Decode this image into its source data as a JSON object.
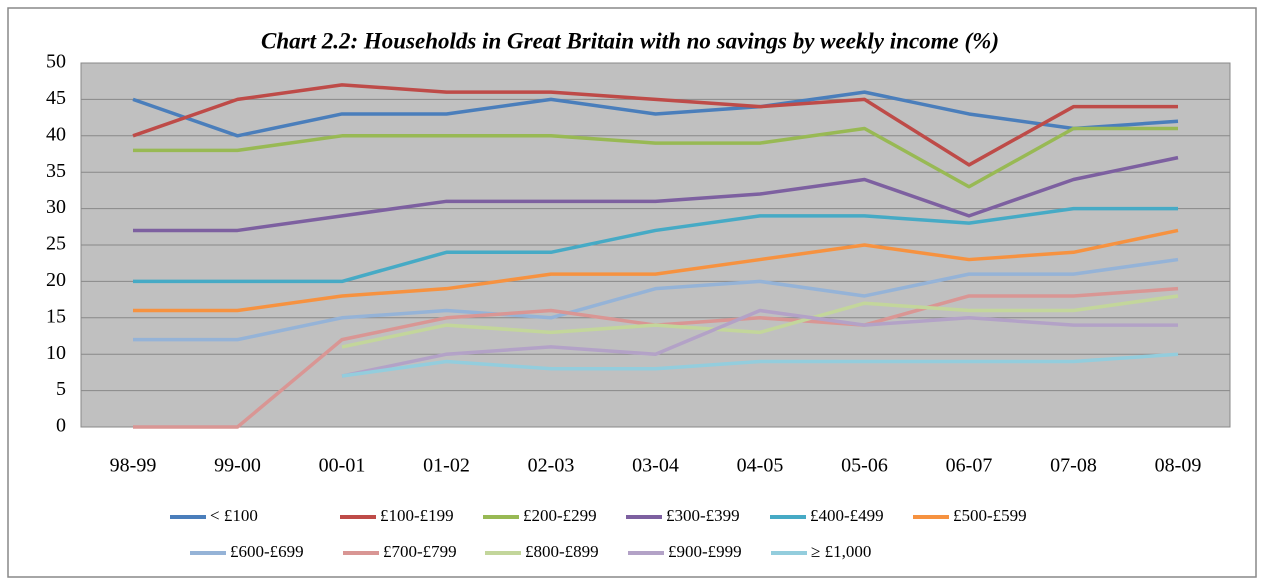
{
  "chart_data": {
    "type": "line",
    "title": "Chart 2.2: Households in Great Britain with no savings by weekly income (%)",
    "categories": [
      "98-99",
      "99-00",
      "00-01",
      "01-02",
      "02-03",
      "03-04",
      "04-05",
      "05-06",
      "06-07",
      "07-08",
      "08-09"
    ],
    "ylim": [
      0,
      50
    ],
    "yticks": [
      0,
      5,
      10,
      15,
      20,
      25,
      30,
      35,
      40,
      45,
      50
    ],
    "grid": true,
    "legend": "bottom",
    "series": [
      {
        "name": "< £100",
        "color": "#4a7ebb",
        "values": [
          45,
          40,
          43,
          43,
          45,
          43,
          44,
          46,
          43,
          41,
          42
        ]
      },
      {
        "name": "£100-£199",
        "color": "#be4b48",
        "values": [
          40,
          45,
          47,
          46,
          46,
          45,
          44,
          45,
          36,
          44,
          44
        ]
      },
      {
        "name": "£200-£299",
        "color": "#98b954",
        "values": [
          38,
          38,
          40,
          40,
          40,
          39,
          39,
          41,
          33,
          41,
          41
        ]
      },
      {
        "name": "£300-£399",
        "color": "#7d60a0",
        "values": [
          27,
          27,
          29,
          31,
          31,
          31,
          32,
          34,
          29,
          34,
          37
        ]
      },
      {
        "name": "£400-£499",
        "color": "#46aac5",
        "values": [
          20,
          20,
          20,
          24,
          24,
          27,
          29,
          29,
          28,
          30,
          30
        ]
      },
      {
        "name": "£500-£599",
        "color": "#f69240",
        "values": [
          16,
          16,
          18,
          19,
          21,
          21,
          23,
          25,
          23,
          24,
          27
        ]
      },
      {
        "name": "£600-£699",
        "color": "#95b3d7",
        "values": [
          12,
          12,
          15,
          16,
          15,
          19,
          20,
          18,
          21,
          21,
          23
        ]
      },
      {
        "name": "£700-£799",
        "color": "#d99694",
        "values": [
          0,
          0,
          12,
          15,
          16,
          14,
          15,
          14,
          18,
          18,
          19
        ]
      },
      {
        "name": "£800-£899",
        "color": "#c3d69b",
        "values": [
          null,
          null,
          11,
          14,
          13,
          14,
          13,
          17,
          16,
          16,
          18
        ]
      },
      {
        "name": "£900-£999",
        "color": "#b3a2c7",
        "values": [
          null,
          null,
          7,
          10,
          11,
          10,
          16,
          14,
          15,
          14,
          14
        ]
      },
      {
        "name": "≥ £1,000",
        "color": "#93cddd",
        "values": [
          null,
          null,
          7,
          9,
          8,
          8,
          9,
          9,
          9,
          9,
          10
        ]
      }
    ]
  }
}
